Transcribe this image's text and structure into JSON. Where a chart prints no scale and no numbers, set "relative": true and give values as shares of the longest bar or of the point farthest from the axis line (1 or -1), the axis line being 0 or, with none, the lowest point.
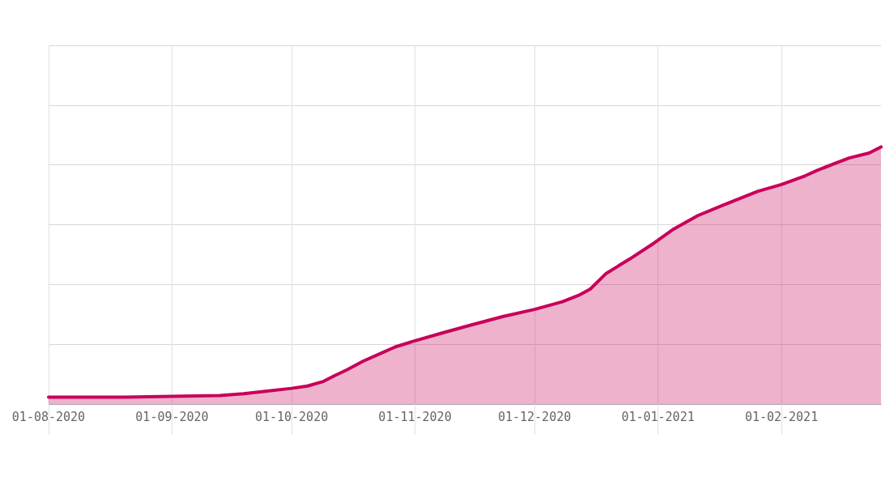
{
  "chart_data": {
    "type": "area",
    "relative": true,
    "grid": true,
    "marker": "none",
    "line_style": "solid",
    "xlim": [
      "2020-08-01",
      "2021-02-26"
    ],
    "xticks": [
      {
        "value": "2020-08-01",
        "label": "01-08-2020"
      },
      {
        "value": "2020-09-01",
        "label": "01-09-2020"
      },
      {
        "value": "2020-10-01",
        "label": "01-10-2020"
      },
      {
        "value": "2020-11-01",
        "label": "01-11-2020"
      },
      {
        "value": "2020-12-01",
        "label": "01-12-2020"
      },
      {
        "value": "2021-01-01",
        "label": "01-01-2021"
      },
      {
        "value": "2021-02-01",
        "label": "01-02-2021"
      }
    ],
    "x": [
      "2020-08-01",
      "2020-08-20",
      "2020-09-01",
      "2020-09-13",
      "2020-09-19",
      "2020-09-24",
      "2020-10-01",
      "2020-10-05",
      "2020-10-09",
      "2020-10-12",
      "2020-10-15",
      "2020-10-19",
      "2020-10-24",
      "2020-10-27",
      "2020-11-01",
      "2020-11-08",
      "2020-11-15",
      "2020-11-23",
      "2020-12-01",
      "2020-12-08",
      "2020-12-12",
      "2020-12-15",
      "2020-12-19",
      "2020-12-25",
      "2020-12-31",
      "2021-01-05",
      "2021-01-11",
      "2021-01-19",
      "2021-01-26",
      "2021-02-01",
      "2021-02-07",
      "2021-02-10",
      "2021-02-14",
      "2021-02-18",
      "2021-02-23",
      "2021-02-26"
    ],
    "series": [
      {
        "color": "#c8005a",
        "values": [
          0.027,
          0.027,
          0.03,
          0.033,
          0.04,
          0.049,
          0.061,
          0.07,
          0.088,
          0.112,
          0.134,
          0.167,
          0.201,
          0.222,
          0.246,
          0.277,
          0.307,
          0.34,
          0.368,
          0.398,
          0.422,
          0.447,
          0.508,
          0.565,
          0.626,
          0.681,
          0.733,
          0.784,
          0.827,
          0.854,
          0.888,
          0.909,
          0.933,
          0.957,
          0.976,
          1.0
        ]
      }
    ]
  }
}
